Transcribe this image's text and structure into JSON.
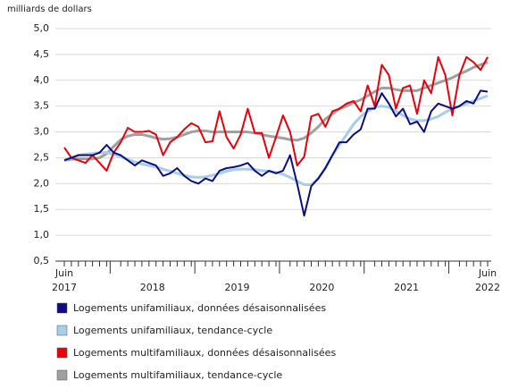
{
  "chart_data": {
    "type": "line",
    "y_axis_label": "milliards de dollars",
    "categories": [
      "Juin",
      null,
      null,
      null,
      null,
      null,
      null,
      null,
      null,
      null,
      null,
      null,
      null,
      null,
      null,
      null,
      null,
      null,
      null,
      null,
      null,
      null,
      null,
      null,
      null,
      null,
      null,
      null,
      null,
      null,
      null,
      null,
      null,
      null,
      null,
      null,
      null,
      null,
      null,
      null,
      null,
      null,
      null,
      null,
      null,
      null,
      null,
      null,
      null,
      null,
      null,
      null,
      null,
      null,
      null,
      null,
      null,
      null,
      null,
      null,
      "Juin"
    ],
    "year_labels": [
      "2017",
      "2018",
      "2019",
      "2020",
      "2021",
      "2022"
    ],
    "ylim": [
      0.5,
      5.0
    ],
    "yticks": [
      {
        "value": 0.5,
        "label": "0,5"
      },
      {
        "value": 1.0,
        "label": "1,0"
      },
      {
        "value": 1.5,
        "label": "1,5"
      },
      {
        "value": 2.0,
        "label": "2,0"
      },
      {
        "value": 2.5,
        "label": "2,5"
      },
      {
        "value": 3.0,
        "label": "3,0"
      },
      {
        "value": 3.5,
        "label": "3,5"
      },
      {
        "value": 4.0,
        "label": "4,0"
      },
      {
        "value": 4.5,
        "label": "4,5"
      },
      {
        "value": 5.0,
        "label": "5,0"
      }
    ],
    "grid": true,
    "series": [
      {
        "name": "Logements unifamiliaux, données désaisonnalisées",
        "color": "#0d0d80",
        "width": 2,
        "values": [
          2.45,
          2.5,
          2.55,
          2.55,
          2.55,
          2.6,
          2.75,
          2.6,
          2.55,
          2.45,
          2.35,
          2.45,
          2.4,
          2.35,
          2.15,
          2.2,
          2.3,
          2.15,
          2.05,
          2.0,
          2.1,
          2.05,
          2.25,
          2.3,
          2.32,
          2.35,
          2.4,
          2.25,
          2.15,
          2.25,
          2.2,
          2.25,
          2.55,
          2.0,
          1.38,
          1.95,
          2.1,
          2.3,
          2.55,
          2.8,
          2.8,
          2.95,
          3.05,
          3.45,
          3.45,
          3.75,
          3.55,
          3.3,
          3.45,
          3.15,
          3.2,
          3.0,
          3.4,
          3.55,
          3.5,
          3.45,
          3.5,
          3.6,
          3.55,
          3.8,
          3.78
        ]
      },
      {
        "name": "Logements unifamiliaux, tendance-cycle",
        "color": "#a6cdea",
        "width": 3,
        "values": [
          2.45,
          2.5,
          2.55,
          2.57,
          2.58,
          2.6,
          2.6,
          2.57,
          2.52,
          2.47,
          2.42,
          2.38,
          2.35,
          2.32,
          2.28,
          2.24,
          2.2,
          2.16,
          2.13,
          2.12,
          2.13,
          2.16,
          2.2,
          2.24,
          2.27,
          2.28,
          2.28,
          2.27,
          2.25,
          2.24,
          2.22,
          2.18,
          2.12,
          2.05,
          1.98,
          1.98,
          2.1,
          2.3,
          2.55,
          2.75,
          2.95,
          3.15,
          3.3,
          3.4,
          3.48,
          3.5,
          3.48,
          3.4,
          3.32,
          3.25,
          3.22,
          3.22,
          3.25,
          3.3,
          3.38,
          3.45,
          3.5,
          3.55,
          3.6,
          3.65,
          3.7
        ]
      },
      {
        "name": "Logements multifamiliaux, données désaisonnalisées",
        "color": "#e8000b",
        "width": 2,
        "values": [
          2.7,
          2.5,
          2.45,
          2.4,
          2.55,
          2.4,
          2.25,
          2.6,
          2.8,
          3.08,
          3.0,
          3.0,
          3.02,
          2.95,
          2.55,
          2.8,
          2.9,
          3.05,
          3.17,
          3.1,
          2.8,
          2.82,
          3.4,
          2.9,
          2.68,
          2.95,
          3.45,
          2.98,
          2.98,
          2.5,
          2.9,
          3.32,
          3.0,
          2.35,
          2.52,
          3.3,
          3.35,
          3.1,
          3.4,
          3.45,
          3.55,
          3.6,
          3.4,
          3.9,
          3.5,
          4.3,
          4.1,
          3.45,
          3.85,
          3.9,
          3.35,
          4.0,
          3.75,
          4.45,
          4.1,
          3.32,
          4.1,
          4.45,
          4.35,
          4.2,
          4.45
        ]
      },
      {
        "name": "Logements multifamiliaux, tendance-cycle",
        "color": "#a0a0a0",
        "width": 3,
        "values": [
          2.45,
          2.47,
          2.48,
          2.48,
          2.48,
          2.5,
          2.58,
          2.72,
          2.85,
          2.92,
          2.95,
          2.95,
          2.92,
          2.88,
          2.86,
          2.87,
          2.9,
          2.95,
          3.0,
          3.02,
          3.02,
          3.0,
          3.0,
          3.0,
          3.0,
          3.0,
          3.0,
          2.98,
          2.95,
          2.92,
          2.9,
          2.88,
          2.85,
          2.84,
          2.88,
          2.98,
          3.1,
          3.25,
          3.35,
          3.45,
          3.5,
          3.57,
          3.62,
          3.7,
          3.78,
          3.85,
          3.85,
          3.82,
          3.8,
          3.8,
          3.8,
          3.85,
          3.9,
          3.95,
          4.0,
          4.05,
          4.12,
          4.18,
          4.25,
          4.3,
          4.35
        ]
      }
    ]
  }
}
